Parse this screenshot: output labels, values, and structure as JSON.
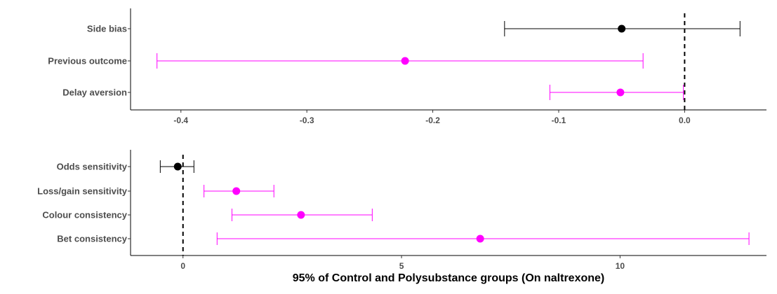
{
  "chart_data": [
    {
      "type": "forest",
      "title": "",
      "xlabel": "",
      "ylabel": "",
      "xlim": [
        -0.44,
        0.065
      ],
      "xticks": [
        -0.4,
        -0.3,
        -0.2,
        -0.1,
        0.0
      ],
      "xtick_labels": [
        "-0.4",
        "-0.3",
        "-0.2",
        "-0.1",
        "0.0"
      ],
      "reference_line": 0,
      "grid": false,
      "rows": [
        {
          "label": "Side bias",
          "estimate": -0.05,
          "lower": -0.143,
          "upper": 0.044,
          "color": "#000000"
        },
        {
          "label": "Previous outcome",
          "estimate": -0.222,
          "lower": -0.419,
          "upper": -0.033,
          "color": "#ff00ff"
        },
        {
          "label": "Delay aversion",
          "estimate": -0.051,
          "lower": -0.107,
          "upper": -0.001,
          "color": "#ff00ff"
        }
      ]
    },
    {
      "type": "forest",
      "title": "",
      "xlabel": "95% of Control and Polysubstance groups (On naltrexone)",
      "ylabel": "",
      "xlim": [
        -1.2,
        13.35
      ],
      "xticks": [
        0,
        5,
        10
      ],
      "xtick_labels": [
        "0",
        "5",
        "10"
      ],
      "reference_line": 0,
      "grid": false,
      "rows": [
        {
          "label": "Odds sensitivity",
          "estimate": -0.12,
          "lower": -0.52,
          "upper": 0.25,
          "color": "#000000"
        },
        {
          "label": "Loss/gain sensitivity",
          "estimate": 1.22,
          "lower": 0.48,
          "upper": 2.08,
          "color": "#ff00ff"
        },
        {
          "label": "Colour consistency",
          "estimate": 2.7,
          "lower": 1.12,
          "upper": 4.33,
          "color": "#ff00ff"
        },
        {
          "label": "Bet consistency",
          "estimate": 6.8,
          "lower": 0.78,
          "upper": 12.95,
          "color": "#ff00ff"
        }
      ]
    }
  ]
}
